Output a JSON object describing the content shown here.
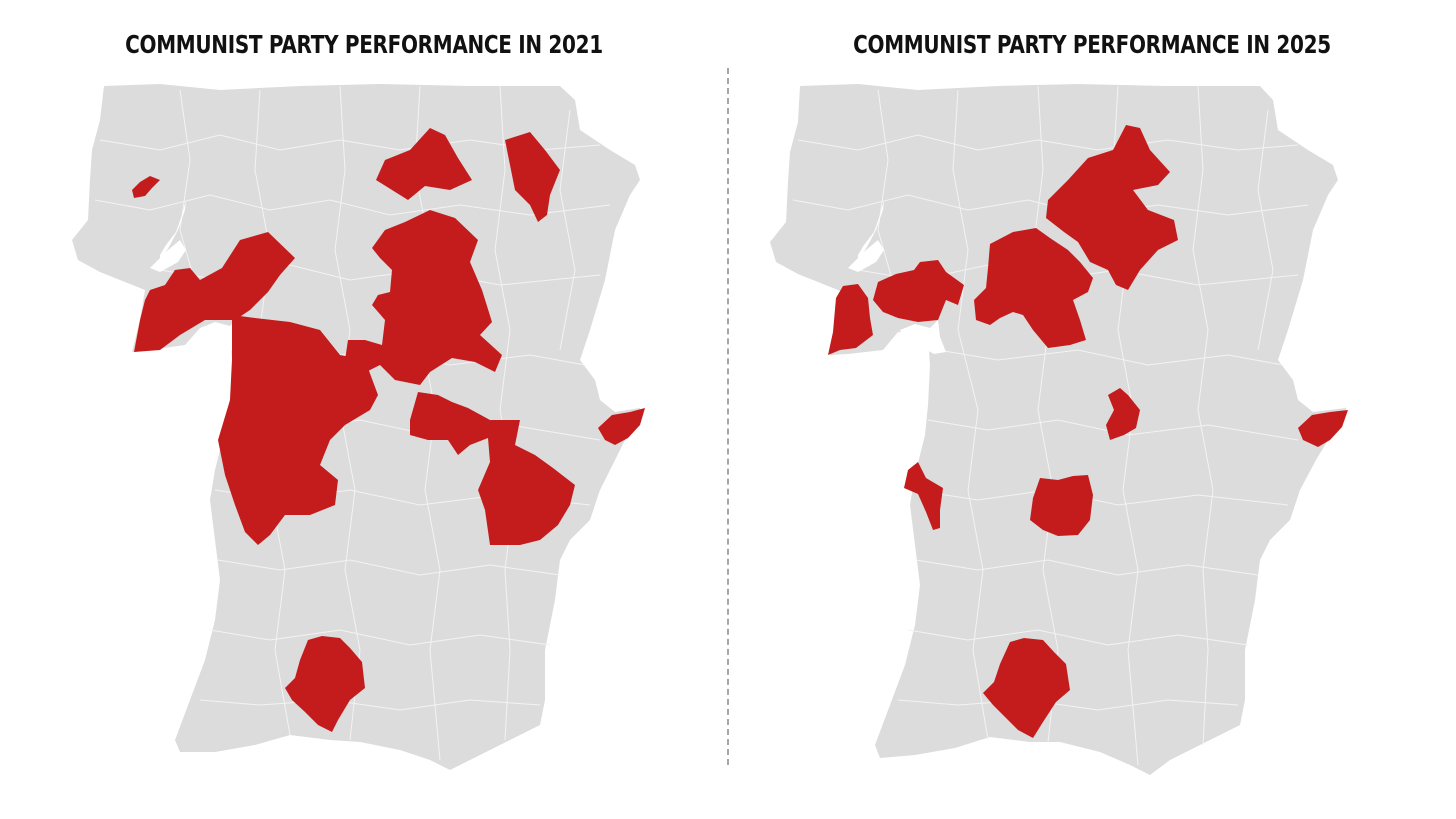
{
  "maps": [
    {
      "title": "COMMUNIST PARTY PERFORMANCE IN 2021"
    },
    {
      "title": "COMMUNIST PARTY PERFORMANCE IN 2025"
    }
  ],
  "colors": {
    "land": "#dcdcdc",
    "border": "#f3f3f3",
    "highlight": "#c41c1c",
    "divider": "#a6a6a6",
    "title": "#111111"
  }
}
